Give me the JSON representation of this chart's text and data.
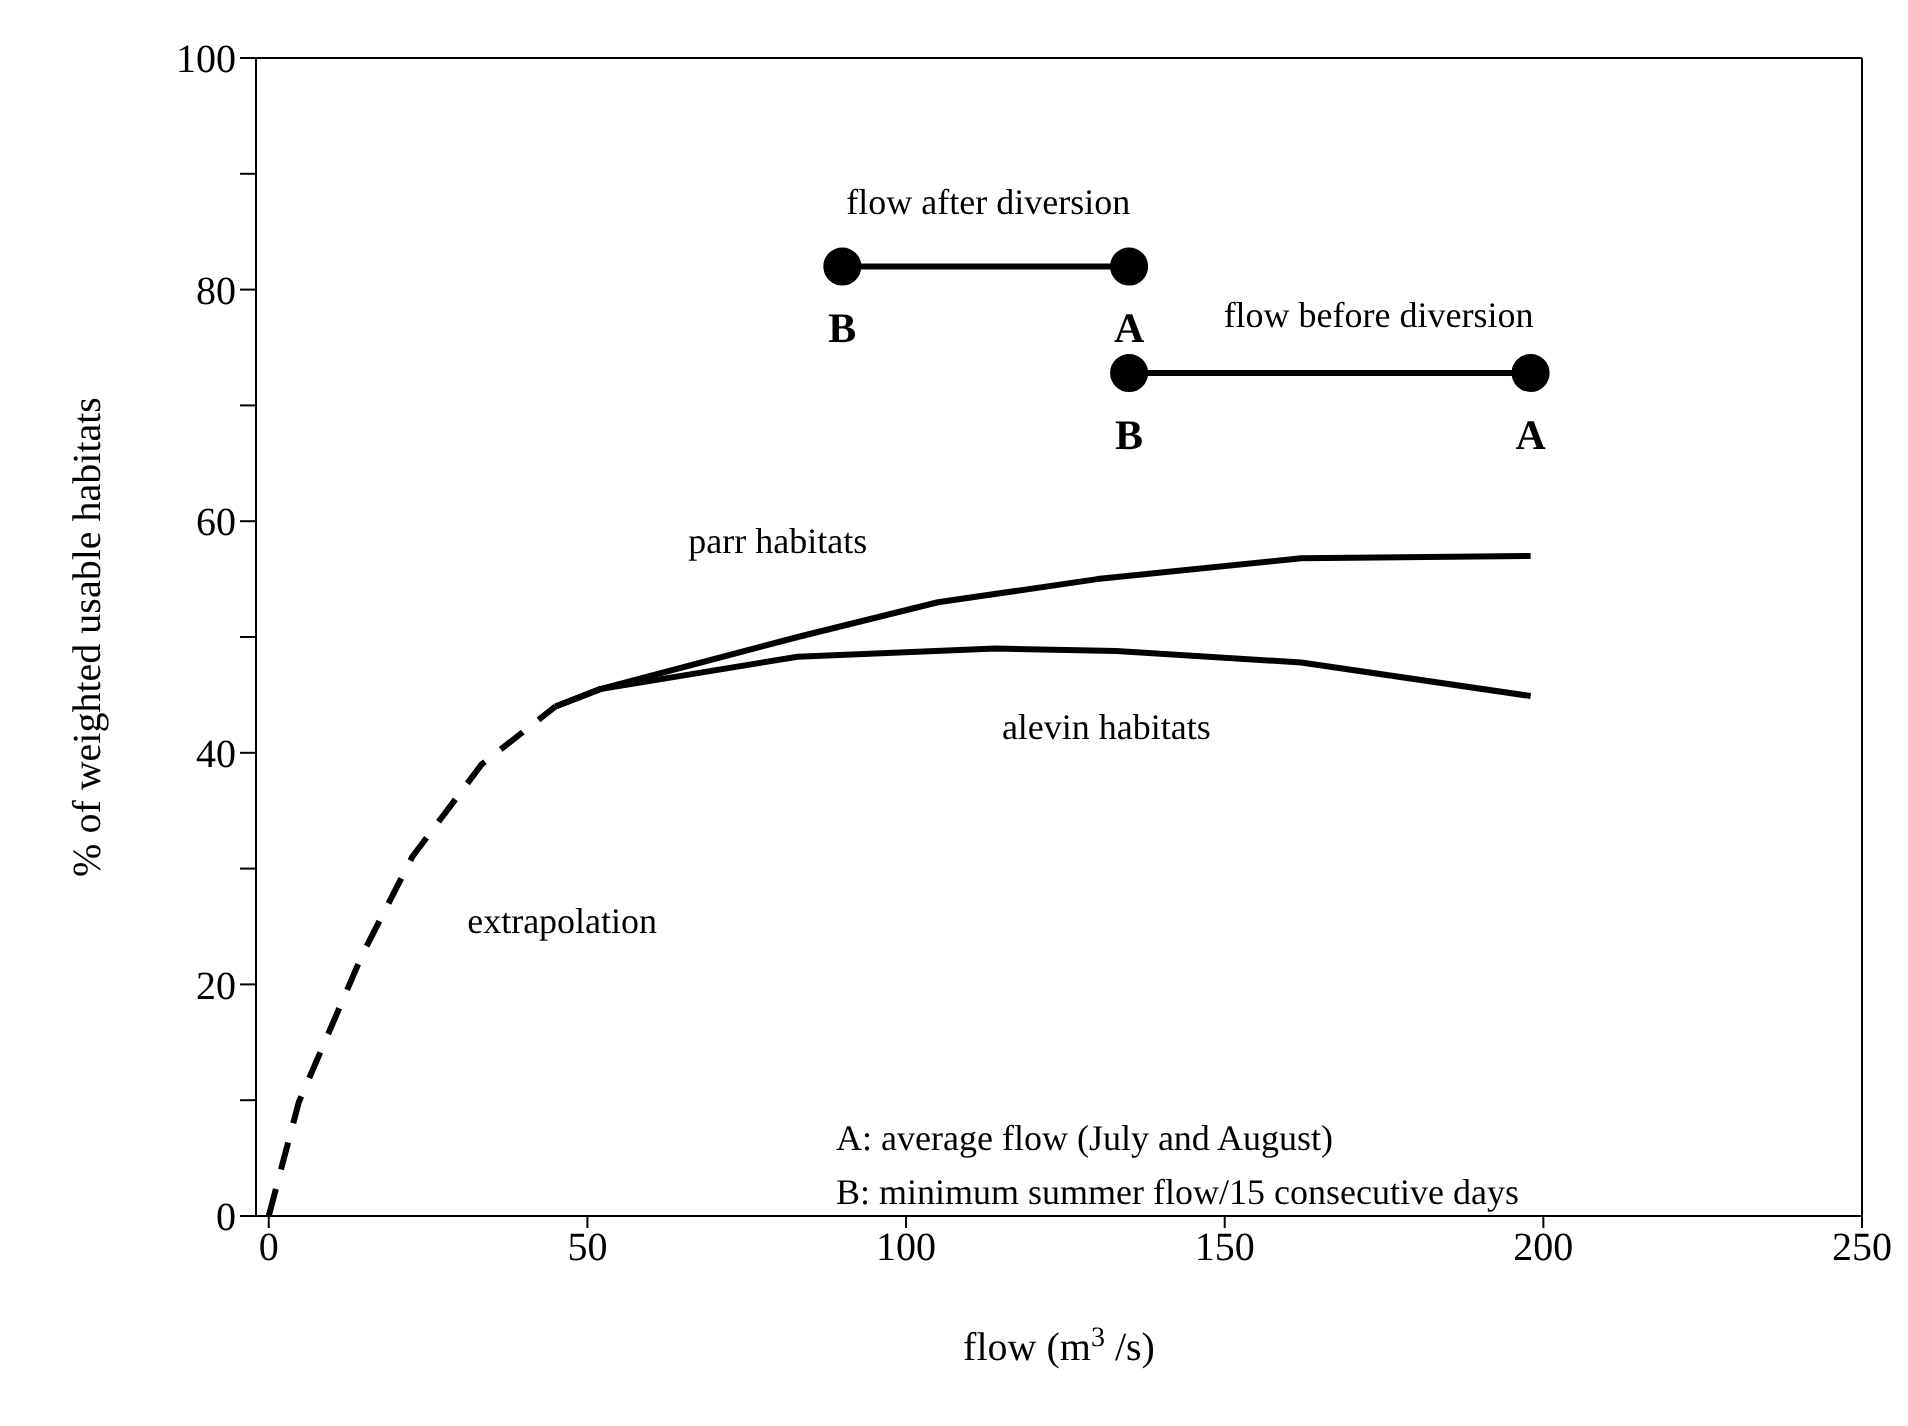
{
  "chart_data": {
    "type": "line",
    "xlabel": "flow (m$^{3}$ /s)",
    "ylabel": "% of weighted usable habitats",
    "xlim": [
      -2,
      250
    ],
    "xticks": [
      0,
      50,
      100,
      150,
      200,
      250
    ],
    "ylim": [
      0,
      100
    ],
    "yticks": [
      0,
      {
        "value": 10,
        "label": null
      },
      20,
      {
        "value": 30,
        "label": null
      },
      40,
      {
        "value": 50,
        "label": null
      },
      60,
      {
        "value": 70,
        "label": null
      },
      80,
      {
        "value": 90,
        "label": null
      },
      100
    ],
    "grid": false,
    "series": [
      {
        "name": "extrapolation",
        "color": "#000000",
        "line_style": "dashed",
        "marker": "none",
        "x": [
          0,
          4.7,
          14.7,
          22.5,
          33.4,
          45
        ],
        "values": [
          0,
          9.8,
          22.6,
          31,
          39,
          44
        ]
      },
      {
        "name": "parr habitats",
        "color": "#000000",
        "line_style": "solid",
        "marker": "none",
        "x": [
          45,
          52,
          83,
          105,
          130,
          162,
          198
        ],
        "values": [
          44,
          45.5,
          50,
          53,
          55,
          56.8,
          57
        ]
      },
      {
        "name": "alevin habitats",
        "color": "#000000",
        "line_style": "solid",
        "marker": "none",
        "x": [
          45,
          52,
          83,
          114,
          133,
          162,
          198
        ],
        "values": [
          44,
          45.5,
          48.3,
          49,
          48.8,
          47.8,
          44.9
        ]
      },
      {
        "name": "flow after diversion",
        "color": "#000000",
        "line_style": "solid",
        "marker": "circle",
        "x": [
          90,
          135
        ],
        "values": [
          82,
          82
        ]
      },
      {
        "name": "flow before diversion",
        "color": "#000000",
        "line_style": "solid",
        "marker": "circle",
        "x": [
          135,
          198
        ],
        "values": [
          72.8,
          72.8
        ]
      }
    ],
    "annotations": [
      {
        "text": "B",
        "x": 90,
        "y": 82
      },
      {
        "text": "A",
        "x": 135,
        "y": 82
      },
      {
        "text": "B",
        "x": 135,
        "y": 72.8
      },
      {
        "text": "A",
        "x": 198,
        "y": 72.8
      },
      "A: average flow (July and August)",
      "B: minimum summer flow/15 consecutive days"
    ]
  }
}
